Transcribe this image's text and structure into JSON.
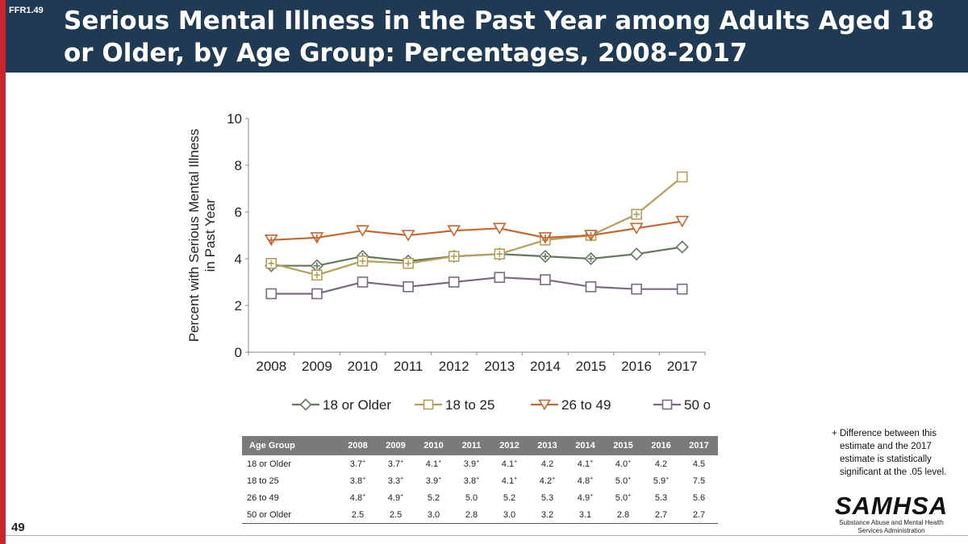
{
  "slide_id": "FFR1.49",
  "title": "Serious Mental Illness in the Past Year among Adults Aged 18 or Older, by Age Group: Percentages, 2008-2017",
  "page_number": "49",
  "colors": {
    "header_bg": "#1f3a52",
    "accent_red": "#c8252c",
    "series_18_older": "#66775f",
    "series_18_25": "#b59f59",
    "series_26_49": "#c4662e",
    "series_50_older": "#7a6a80"
  },
  "chart_data": {
    "type": "line",
    "ylabel": "Percent with Serious Mental Illness in Past Year",
    "ylabel_lines": [
      "Percent with Serious Mental Illness",
      "in Past Year"
    ],
    "xlabel": "",
    "ylim": [
      0,
      10
    ],
    "yticks": [
      "0",
      "2",
      "4",
      "6",
      "8",
      "10"
    ],
    "categories": [
      "2008",
      "2009",
      "2010",
      "2011",
      "2012",
      "2013",
      "2014",
      "2015",
      "2016",
      "2017"
    ],
    "series": [
      {
        "name": "18 or Older",
        "marker": "diamond",
        "color": "#66775f",
        "values": [
          3.7,
          3.7,
          4.1,
          3.9,
          4.1,
          4.2,
          4.1,
          4.0,
          4.2,
          4.5
        ],
        "significant": [
          true,
          true,
          true,
          true,
          true,
          false,
          true,
          true,
          false,
          false
        ]
      },
      {
        "name": "18 to 25",
        "marker": "square",
        "color": "#b59f59",
        "values": [
          3.8,
          3.3,
          3.9,
          3.8,
          4.1,
          4.2,
          4.8,
          5.0,
          5.9,
          7.5
        ],
        "significant": [
          true,
          true,
          true,
          true,
          true,
          true,
          true,
          true,
          true,
          false
        ]
      },
      {
        "name": "26 to 49",
        "marker": "triangle-down",
        "color": "#c4662e",
        "values": [
          4.8,
          4.9,
          5.2,
          5.0,
          5.2,
          5.3,
          4.9,
          5.0,
          5.3,
          5.6
        ],
        "significant": [
          true,
          true,
          false,
          false,
          false,
          false,
          true,
          true,
          false,
          false
        ]
      },
      {
        "name": "50 or Older",
        "marker": "square",
        "color": "#7a6a80",
        "values": [
          2.5,
          2.5,
          3.0,
          2.8,
          3.0,
          3.2,
          3.1,
          2.8,
          2.7,
          2.7
        ],
        "significant": [
          false,
          false,
          false,
          false,
          false,
          false,
          false,
          false,
          false,
          false
        ]
      }
    ]
  },
  "table": {
    "header": [
      "Age Group",
      "2008",
      "2009",
      "2010",
      "2011",
      "2012",
      "2013",
      "2014",
      "2015",
      "2016",
      "2017"
    ],
    "rows": [
      {
        "label": "18 or Older",
        "cells": [
          {
            "v": "3.7",
            "s": "+"
          },
          {
            "v": "3.7",
            "s": "+"
          },
          {
            "v": "4.1",
            "s": "+"
          },
          {
            "v": "3.9",
            "s": "+"
          },
          {
            "v": "4.1",
            "s": "+"
          },
          {
            "v": "4.2",
            "s": ""
          },
          {
            "v": "4.1",
            "s": "+"
          },
          {
            "v": "4.0",
            "s": "+"
          },
          {
            "v": "4.2",
            "s": ""
          },
          {
            "v": "4.5",
            "s": ""
          }
        ]
      },
      {
        "label": "18 to 25",
        "cells": [
          {
            "v": "3.8",
            "s": "+"
          },
          {
            "v": "3.3",
            "s": "+"
          },
          {
            "v": "3.9",
            "s": "+"
          },
          {
            "v": "3.8",
            "s": "+"
          },
          {
            "v": "4.1",
            "s": "+"
          },
          {
            "v": "4.2",
            "s": "+"
          },
          {
            "v": "4.8",
            "s": "+"
          },
          {
            "v": "5.0",
            "s": "+"
          },
          {
            "v": "5.9",
            "s": "+"
          },
          {
            "v": "7.5",
            "s": ""
          }
        ]
      },
      {
        "label": "26 to 49",
        "cells": [
          {
            "v": "4.8",
            "s": "+"
          },
          {
            "v": "4.9",
            "s": "+"
          },
          {
            "v": "5.2",
            "s": ""
          },
          {
            "v": "5.0",
            "s": ""
          },
          {
            "v": "5.2",
            "s": ""
          },
          {
            "v": "5.3",
            "s": ""
          },
          {
            "v": "4.9",
            "s": "+"
          },
          {
            "v": "5.0",
            "s": "+"
          },
          {
            "v": "5.3",
            "s": ""
          },
          {
            "v": "5.6",
            "s": ""
          }
        ]
      },
      {
        "label": "50 or Older",
        "cells": [
          {
            "v": "2.5",
            "s": ""
          },
          {
            "v": "2.5",
            "s": ""
          },
          {
            "v": "3.0",
            "s": ""
          },
          {
            "v": "2.8",
            "s": ""
          },
          {
            "v": "3.0",
            "s": ""
          },
          {
            "v": "3.2",
            "s": ""
          },
          {
            "v": "3.1",
            "s": ""
          },
          {
            "v": "2.8",
            "s": ""
          },
          {
            "v": "2.7",
            "s": ""
          },
          {
            "v": "2.7",
            "s": ""
          }
        ]
      }
    ]
  },
  "footnote": {
    "symbol": "+",
    "text": "Difference between this estimate and the 2017 estimate is statistically significant at the .05 level."
  },
  "logo": {
    "name": "SAMHSA",
    "tagline": "Substance Abuse and Mental Health Services Administration"
  }
}
